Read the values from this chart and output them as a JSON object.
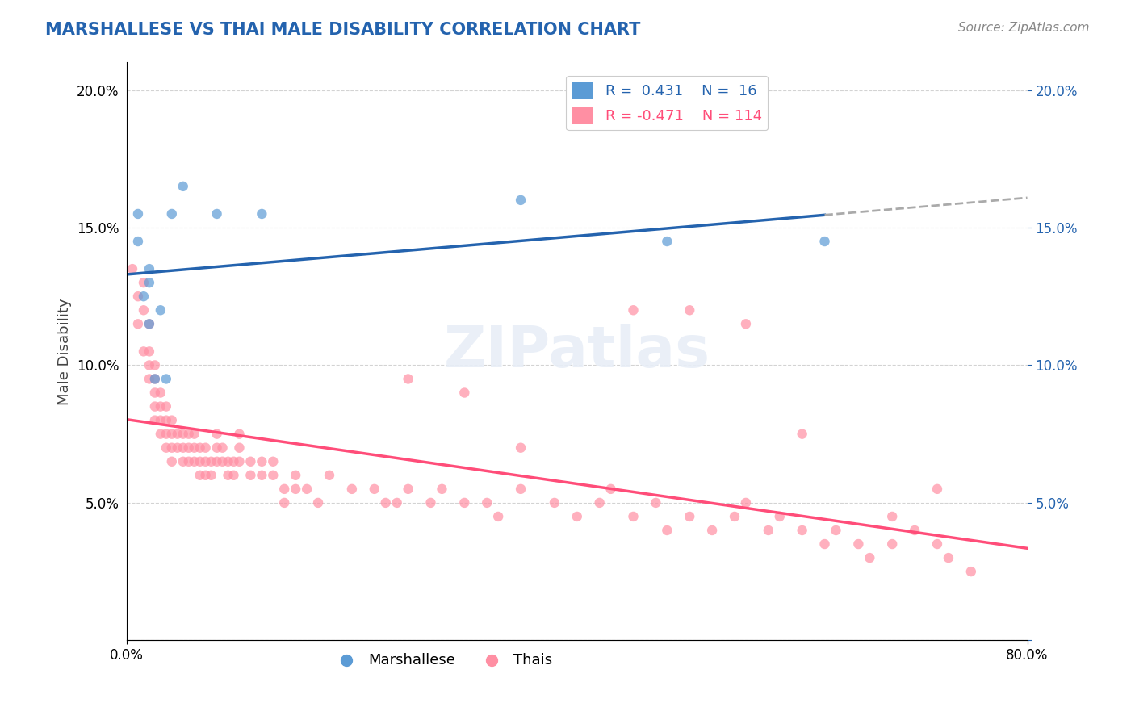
{
  "title": "MARSHALLESE VS THAI MALE DISABILITY CORRELATION CHART",
  "source": "Source: ZipAtlas.com",
  "xlabel": "",
  "ylabel": "Male Disability",
  "xlim": [
    0.0,
    0.8
  ],
  "ylim": [
    0.0,
    0.21
  ],
  "yticks": [
    0.0,
    0.05,
    0.1,
    0.15,
    0.2
  ],
  "xticks": [
    0.0,
    0.8
  ],
  "xtick_labels": [
    "0.0%",
    "80.0%"
  ],
  "ytick_labels": [
    "",
    "5.0%",
    "10.0%",
    "15.0%",
    "20.0%"
  ],
  "legend_r1": "R =  0.431",
  "legend_n1": "N =  16",
  "legend_r2": "R = -0.471",
  "legend_n2": "N = 114",
  "blue_color": "#5b9bd5",
  "pink_color": "#ff8fa3",
  "blue_line_color": "#2463ae",
  "pink_line_color": "#ff4d79",
  "grid_color": "#d3d3d3",
  "watermark": "ZIPatlas",
  "marshallese_x": [
    0.01,
    0.01,
    0.015,
    0.02,
    0.02,
    0.02,
    0.025,
    0.03,
    0.035,
    0.04,
    0.05,
    0.08,
    0.12,
    0.35,
    0.48,
    0.62
  ],
  "marshallese_y": [
    0.155,
    0.145,
    0.125,
    0.135,
    0.13,
    0.115,
    0.095,
    0.12,
    0.095,
    0.155,
    0.165,
    0.155,
    0.155,
    0.16,
    0.145,
    0.145
  ],
  "thai_x": [
    0.005,
    0.01,
    0.01,
    0.015,
    0.015,
    0.015,
    0.02,
    0.02,
    0.02,
    0.02,
    0.025,
    0.025,
    0.025,
    0.025,
    0.025,
    0.03,
    0.03,
    0.03,
    0.03,
    0.035,
    0.035,
    0.035,
    0.035,
    0.04,
    0.04,
    0.04,
    0.04,
    0.045,
    0.045,
    0.05,
    0.05,
    0.05,
    0.055,
    0.055,
    0.055,
    0.06,
    0.06,
    0.06,
    0.065,
    0.065,
    0.065,
    0.07,
    0.07,
    0.07,
    0.075,
    0.075,
    0.08,
    0.08,
    0.08,
    0.085,
    0.085,
    0.09,
    0.09,
    0.095,
    0.095,
    0.1,
    0.1,
    0.1,
    0.11,
    0.11,
    0.12,
    0.12,
    0.13,
    0.13,
    0.14,
    0.14,
    0.15,
    0.15,
    0.16,
    0.17,
    0.18,
    0.2,
    0.22,
    0.23,
    0.24,
    0.25,
    0.27,
    0.28,
    0.3,
    0.32,
    0.33,
    0.35,
    0.38,
    0.4,
    0.42,
    0.43,
    0.45,
    0.47,
    0.48,
    0.5,
    0.52,
    0.54,
    0.55,
    0.57,
    0.58,
    0.6,
    0.62,
    0.63,
    0.65,
    0.66,
    0.68,
    0.7,
    0.72,
    0.73,
    0.75,
    0.6,
    0.55,
    0.5,
    0.45,
    0.35,
    0.3,
    0.25,
    0.72,
    0.68
  ],
  "thai_y": [
    0.135,
    0.125,
    0.115,
    0.13,
    0.12,
    0.105,
    0.115,
    0.105,
    0.1,
    0.095,
    0.1,
    0.095,
    0.09,
    0.085,
    0.08,
    0.09,
    0.085,
    0.08,
    0.075,
    0.085,
    0.08,
    0.075,
    0.07,
    0.08,
    0.075,
    0.07,
    0.065,
    0.075,
    0.07,
    0.075,
    0.07,
    0.065,
    0.075,
    0.07,
    0.065,
    0.075,
    0.07,
    0.065,
    0.07,
    0.065,
    0.06,
    0.07,
    0.065,
    0.06,
    0.065,
    0.06,
    0.075,
    0.07,
    0.065,
    0.07,
    0.065,
    0.065,
    0.06,
    0.065,
    0.06,
    0.075,
    0.07,
    0.065,
    0.065,
    0.06,
    0.065,
    0.06,
    0.065,
    0.06,
    0.055,
    0.05,
    0.06,
    0.055,
    0.055,
    0.05,
    0.06,
    0.055,
    0.055,
    0.05,
    0.05,
    0.055,
    0.05,
    0.055,
    0.05,
    0.05,
    0.045,
    0.055,
    0.05,
    0.045,
    0.05,
    0.055,
    0.045,
    0.05,
    0.04,
    0.045,
    0.04,
    0.045,
    0.05,
    0.04,
    0.045,
    0.04,
    0.035,
    0.04,
    0.035,
    0.03,
    0.045,
    0.04,
    0.035,
    0.03,
    0.025,
    0.075,
    0.115,
    0.12,
    0.12,
    0.07,
    0.09,
    0.095,
    0.055,
    0.035
  ]
}
